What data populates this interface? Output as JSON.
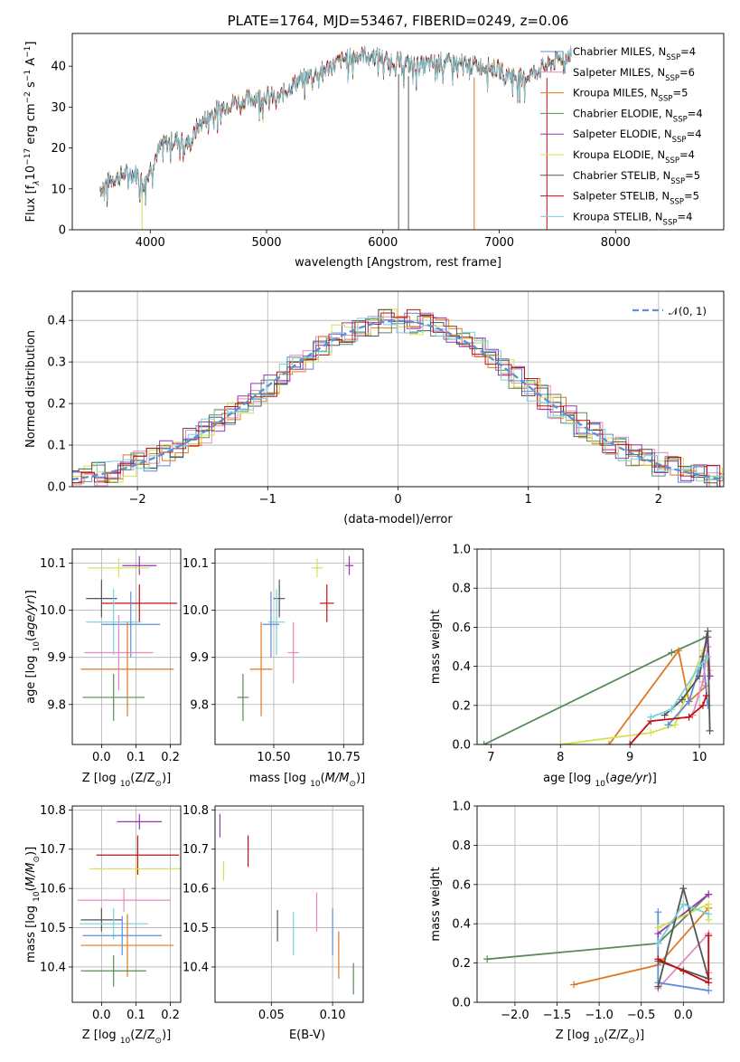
{
  "colors": {
    "chabrier_miles": "#5b8fd6",
    "salpeter_miles": "#e48ac1",
    "kroupa_miles": "#e07820",
    "chabrier_elodie": "#5a8a5a",
    "salpeter_elodie": "#9a36b0",
    "kroupa_elodie": "#d6e050",
    "chabrier_stelib": "#555555",
    "salpeter_stelib": "#c01010",
    "kroupa_stelib": "#78d0dc",
    "normal": "#5b8fd6",
    "grid": "#b0b0b0"
  },
  "chart_data": [
    {
      "id": "spectrum",
      "type": "line",
      "title": "PLATE=1764, MJD=53467, FIBERID=0249, z=0.06",
      "xlabel": "wavelength [Angstrom, rest frame]",
      "ylabel": "Flux [f$_\\lambda$10$^{-17}$ erg cm$^{-2}$ s$^{-1}$ A$^{-1}$]",
      "ylabel_parts": [
        "Flux [f",
        "λ",
        "10",
        "−17",
        " erg cm",
        "−2",
        " s",
        "−1",
        " A",
        "−1",
        "]"
      ],
      "xlim": [
        3330,
        8930
      ],
      "ylim": [
        0,
        48
      ],
      "xticks": [
        4000,
        5000,
        6000,
        7000,
        8000
      ],
      "yticks": [
        0,
        10,
        20,
        30,
        40
      ],
      "grid": false,
      "legend_position": "right",
      "series": [
        {
          "name": "Chabrier MILES, N",
          "sub": "SSP",
          "suffix": "=4",
          "color_key": "chabrier_miles"
        },
        {
          "name": "Salpeter MILES, N",
          "sub": "SSP",
          "suffix": "=6",
          "color_key": "salpeter_miles"
        },
        {
          "name": "Kroupa MILES, N",
          "sub": "SSP",
          "suffix": "=5",
          "color_key": "kroupa_miles"
        },
        {
          "name": "Chabrier ELODIE, N",
          "sub": "SSP",
          "suffix": "=4",
          "color_key": "chabrier_elodie"
        },
        {
          "name": "Salpeter ELODIE, N",
          "sub": "SSP",
          "suffix": "=4",
          "color_key": "salpeter_elodie"
        },
        {
          "name": "Kroupa ELODIE, N",
          "sub": "SSP",
          "suffix": "=4",
          "color_key": "kroupa_elodie"
        },
        {
          "name": "Chabrier STELIB, N",
          "sub": "SSP",
          "suffix": "=5",
          "color_key": "chabrier_stelib"
        },
        {
          "name": "Salpeter STELIB, N",
          "sub": "SSP",
          "suffix": "=5",
          "color_key": "salpeter_stelib"
        },
        {
          "name": "Kroupa STELIB, N",
          "sub": "SSP",
          "suffix": "=4",
          "color_key": "kroupa_stelib"
        }
      ],
      "continuum": [
        [
          3570,
          10
        ],
        [
          3650,
          12
        ],
        [
          3800,
          14
        ],
        [
          3900,
          13.5
        ],
        [
          3950,
          11
        ],
        [
          4000,
          15
        ],
        [
          4100,
          21
        ],
        [
          4250,
          22
        ],
        [
          4350,
          21
        ],
        [
          4400,
          25
        ],
        [
          4550,
          29
        ],
        [
          4700,
          31
        ],
        [
          4850,
          32
        ],
        [
          5000,
          33
        ],
        [
          5100,
          32
        ],
        [
          5200,
          35
        ],
        [
          5300,
          37
        ],
        [
          5400,
          38
        ],
        [
          5550,
          40
        ],
        [
          5700,
          42
        ],
        [
          5850,
          43
        ],
        [
          6000,
          42
        ],
        [
          6150,
          41
        ],
        [
          6300,
          40
        ],
        [
          6500,
          41
        ],
        [
          6700,
          40.5
        ],
        [
          6900,
          40
        ],
        [
          7050,
          38.5
        ],
        [
          7200,
          37
        ],
        [
          7400,
          40
        ],
        [
          7600,
          43
        ]
      ],
      "spikes": [
        {
          "x": 3930,
          "y": 0,
          "color_key": "kroupa_elodie"
        },
        {
          "x": 6135,
          "y": 0,
          "color_key": "chabrier_stelib"
        },
        {
          "x": 6220,
          "y": 0,
          "color_key": "chabrier_stelib"
        },
        {
          "x": 6785,
          "y": 0,
          "color_key": "kroupa_miles"
        },
        {
          "x": 7410,
          "y": 0,
          "color_key": "salpeter_stelib"
        }
      ]
    },
    {
      "id": "residuals",
      "type": "line",
      "xlabel": "(data-model)/error",
      "ylabel": "Normed distribution",
      "xlim": [
        -2.5,
        2.5
      ],
      "ylim": [
        0,
        0.47
      ],
      "xticks": [
        -2,
        -1,
        0,
        1,
        2
      ],
      "yticks": [
        0.0,
        0.1,
        0.2,
        0.3,
        0.4
      ],
      "grid": true,
      "legend_position": "top-right",
      "legend": "𝒩(0, 1)",
      "normal_curve": {
        "mean": 0,
        "sd": 1
      }
    },
    {
      "id": "age_z",
      "type": "scatter",
      "xlabel": "Z [log",
      "xlabel_sub": "10",
      "xlabel_rest": "(Z/Z",
      "xlabel_end": ")]",
      "ylabel": "age  [log",
      "ylabel_sub": "10",
      "ylabel_rest": "(age/yr)]",
      "xlim": [
        -0.085,
        0.23
      ],
      "ylim": [
        9.715,
        10.13
      ],
      "xticks": [
        0.0,
        0.1,
        0.2
      ],
      "yticks": [
        9.8,
        9.9,
        10.0,
        10.1
      ],
      "grid": true,
      "points": [
        {
          "x": 0.11,
          "y": 10.095,
          "xerr": 0.05,
          "yerr": 0.02,
          "color_key": "salpeter_elodie"
        },
        {
          "x": 0.05,
          "y": 10.09,
          "xerr": 0.09,
          "yerr": 0.02,
          "color_key": "kroupa_elodie"
        },
        {
          "x": 0.0,
          "y": 10.025,
          "xerr": 0.045,
          "yerr": 0.04,
          "color_key": "chabrier_stelib"
        },
        {
          "x": 0.11,
          "y": 10.015,
          "xerr": 0.11,
          "yerr": 0.04,
          "color_key": "salpeter_stelib"
        },
        {
          "x": 0.035,
          "y": 9.975,
          "xerr": 0.08,
          "yerr": 0.07,
          "color_key": "kroupa_stelib"
        },
        {
          "x": 0.085,
          "y": 9.97,
          "xerr": 0.085,
          "yerr": 0.07,
          "color_key": "chabrier_miles"
        },
        {
          "x": 0.05,
          "y": 9.91,
          "xerr": 0.1,
          "yerr": 0.08,
          "color_key": "salpeter_miles"
        },
        {
          "x": 0.075,
          "y": 9.875,
          "xerr": 0.135,
          "yerr": 0.1,
          "color_key": "kroupa_miles"
        },
        {
          "x": 0.035,
          "y": 9.815,
          "xerr": 0.09,
          "yerr": 0.05,
          "color_key": "chabrier_elodie"
        }
      ]
    },
    {
      "id": "age_mass",
      "type": "scatter",
      "xlabel": "mass [log",
      "xlabel_sub": "10",
      "xlabel_rest": "(M/M",
      "xlabel_end": ")]",
      "xlim": [
        10.29,
        10.82
      ],
      "ylim": [
        9.715,
        10.13
      ],
      "xticks": [
        10.5,
        10.75
      ],
      "xtick_labels": [
        "10.50",
        "10.75"
      ],
      "yticks": [
        9.8,
        9.9,
        10.0,
        10.1
      ],
      "grid": true,
      "points": [
        {
          "x": 10.77,
          "y": 10.095,
          "xerr": 0.015,
          "yerr": 0.02,
          "color_key": "salpeter_elodie"
        },
        {
          "x": 10.655,
          "y": 10.09,
          "xerr": 0.02,
          "yerr": 0.02,
          "color_key": "kroupa_elodie"
        },
        {
          "x": 10.52,
          "y": 10.025,
          "xerr": 0.02,
          "yerr": 0.04,
          "color_key": "chabrier_stelib"
        },
        {
          "x": 10.69,
          "y": 10.015,
          "xerr": 0.025,
          "yerr": 0.04,
          "color_key": "salpeter_stelib"
        },
        {
          "x": 10.51,
          "y": 9.975,
          "xerr": 0.03,
          "yerr": 0.07,
          "color_key": "kroupa_stelib"
        },
        {
          "x": 10.49,
          "y": 9.97,
          "xerr": 0.03,
          "yerr": 0.07,
          "color_key": "chabrier_miles"
        },
        {
          "x": 10.57,
          "y": 9.91,
          "xerr": 0.02,
          "yerr": 0.065,
          "color_key": "salpeter_miles"
        },
        {
          "x": 10.455,
          "y": 9.875,
          "xerr": 0.04,
          "yerr": 0.1,
          "color_key": "kroupa_miles"
        },
        {
          "x": 10.39,
          "y": 9.815,
          "xerr": 0.02,
          "yerr": 0.05,
          "color_key": "chabrier_elodie"
        }
      ]
    },
    {
      "id": "weights_age",
      "type": "line",
      "xlabel": "age  [log",
      "xlabel_sub": "10",
      "xlabel_rest": "(age/yr)]",
      "ylabel": "mass weight",
      "xlim": [
        6.8,
        10.35
      ],
      "ylim": [
        0,
        1
      ],
      "xticks": [
        7,
        8,
        9,
        10
      ],
      "yticks": [
        0.0,
        0.2,
        0.4,
        0.6,
        0.8,
        1.0
      ],
      "grid": true,
      "series": [
        {
          "color_key": "chabrier_elodie",
          "points": [
            [
              6.9,
              0.0
            ],
            [
              9.6,
              0.47
            ],
            [
              10.1,
              0.55
            ]
          ]
        },
        {
          "color_key": "kroupa_miles",
          "points": [
            [
              8.7,
              0.0
            ],
            [
              9.7,
              0.48
            ],
            [
              9.85,
              0.22
            ],
            [
              10.1,
              0.3
            ]
          ]
        },
        {
          "color_key": "kroupa_elodie",
          "points": [
            [
              8.0,
              0.0
            ],
            [
              9.3,
              0.06
            ],
            [
              9.65,
              0.1
            ],
            [
              10.05,
              0.48
            ],
            [
              10.15,
              0.38
            ]
          ]
        },
        {
          "color_key": "chabrier_miles",
          "points": [
            [
              9.55,
              0.1
            ],
            [
              9.85,
              0.22
            ],
            [
              10.05,
              0.45
            ],
            [
              10.12,
              0.2
            ]
          ]
        },
        {
          "color_key": "salpeter_miles",
          "points": [
            [
              9.9,
              0.15
            ],
            [
              10.05,
              0.32
            ],
            [
              10.12,
              0.5
            ]
          ]
        },
        {
          "color_key": "salpeter_elodie",
          "points": [
            [
              10.05,
              0.45
            ],
            [
              10.12,
              0.55
            ],
            [
              10.15,
              0.35
            ]
          ]
        },
        {
          "color_key": "chabrier_stelib",
          "points": [
            [
              9.5,
              0.15
            ],
            [
              9.75,
              0.23
            ],
            [
              10.0,
              0.35
            ],
            [
              10.12,
              0.58
            ],
            [
              10.15,
              0.07
            ]
          ]
        },
        {
          "color_key": "salpeter_stelib",
          "points": [
            [
              9.0,
              0.0
            ],
            [
              9.3,
              0.12
            ],
            [
              9.85,
              0.14
            ],
            [
              10.05,
              0.2
            ],
            [
              10.1,
              0.25
            ]
          ]
        },
        {
          "color_key": "kroupa_stelib",
          "points": [
            [
              9.3,
              0.14
            ],
            [
              9.6,
              0.18
            ],
            [
              10.0,
              0.4
            ],
            [
              10.12,
              0.45
            ]
          ]
        }
      ]
    },
    {
      "id": "mass_z",
      "type": "scatter",
      "xlabel": "Z [log",
      "xlabel_sub": "10",
      "xlabel_rest": "(Z/Z",
      "xlabel_end": ")]",
      "ylabel": "mass [log",
      "ylabel_sub": "10",
      "ylabel_rest": "(M/M",
      "ylabel_end": ")]",
      "xlim": [
        -0.085,
        0.23
      ],
      "ylim": [
        10.31,
        10.81
      ],
      "xticks": [
        0.0,
        0.1,
        0.2
      ],
      "yticks": [
        10.4,
        10.5,
        10.6,
        10.7,
        10.8
      ],
      "grid": true,
      "points": [
        {
          "x": 0.11,
          "y": 10.77,
          "xerr": 0.065,
          "yerr": 0.02,
          "color_key": "salpeter_elodie"
        },
        {
          "x": 0.105,
          "y": 10.685,
          "xerr": 0.12,
          "yerr": 0.05,
          "color_key": "salpeter_stelib"
        },
        {
          "x": 0.1,
          "y": 10.65,
          "xerr": 0.135,
          "yerr": 0.025,
          "color_key": "kroupa_elodie"
        },
        {
          "x": 0.065,
          "y": 10.57,
          "xerr": 0.135,
          "yerr": 0.03,
          "color_key": "salpeter_miles"
        },
        {
          "x": 0.0,
          "y": 10.52,
          "xerr": 0.06,
          "yerr": 0.03,
          "color_key": "chabrier_stelib"
        },
        {
          "x": 0.035,
          "y": 10.51,
          "xerr": 0.1,
          "yerr": 0.04,
          "color_key": "kroupa_stelib"
        },
        {
          "x": 0.06,
          "y": 10.48,
          "xerr": 0.115,
          "yerr": 0.05,
          "color_key": "chabrier_miles"
        },
        {
          "x": 0.075,
          "y": 10.455,
          "xerr": 0.135,
          "yerr": 0.08,
          "color_key": "kroupa_miles"
        },
        {
          "x": 0.035,
          "y": 10.39,
          "xerr": 0.095,
          "yerr": 0.04,
          "color_key": "chabrier_elodie"
        }
      ]
    },
    {
      "id": "mass_ebv",
      "type": "scatter",
      "xlabel": "E(B-V)",
      "xlim": [
        0.004,
        0.125
      ],
      "ylim": [
        10.31,
        10.81
      ],
      "xticks": [
        0.05,
        0.1
      ],
      "xtick_labels": [
        "0.05",
        "0.10"
      ],
      "yticks": [
        10.4,
        10.5,
        10.6,
        10.7,
        10.8
      ],
      "grid": true,
      "points": [
        {
          "x": 0.008,
          "y": 10.76,
          "xerr": 0,
          "yerr": 0.03,
          "color_key": "salpeter_elodie"
        },
        {
          "x": 0.031,
          "y": 10.695,
          "xerr": 0,
          "yerr": 0.04,
          "color_key": "salpeter_stelib"
        },
        {
          "x": 0.011,
          "y": 10.645,
          "xerr": 0,
          "yerr": 0.025,
          "color_key": "kroupa_elodie"
        },
        {
          "x": 0.087,
          "y": 10.54,
          "xerr": 0,
          "yerr": 0.05,
          "color_key": "salpeter_miles"
        },
        {
          "x": 0.055,
          "y": 10.505,
          "xerr": 0,
          "yerr": 0.04,
          "color_key": "chabrier_stelib"
        },
        {
          "x": 0.068,
          "y": 10.485,
          "xerr": 0,
          "yerr": 0.055,
          "color_key": "kroupa_stelib"
        },
        {
          "x": 0.1,
          "y": 10.49,
          "xerr": 0,
          "yerr": 0.06,
          "color_key": "chabrier_miles"
        },
        {
          "x": 0.105,
          "y": 10.43,
          "xerr": 0,
          "yerr": 0.06,
          "color_key": "kroupa_miles"
        },
        {
          "x": 0.117,
          "y": 10.37,
          "xerr": 0,
          "yerr": 0.04,
          "color_key": "chabrier_elodie"
        }
      ]
    },
    {
      "id": "weights_z",
      "type": "line",
      "xlabel": "Z [log",
      "xlabel_sub": "10",
      "xlabel_rest": "(Z/Z",
      "xlabel_end": ")]",
      "ylabel": "mass weight",
      "xlim": [
        -2.45,
        0.48
      ],
      "ylim": [
        0,
        1
      ],
      "xticks": [
        -2.0,
        -1.5,
        -1.0,
        -0.5,
        0.0
      ],
      "yticks": [
        0.0,
        0.2,
        0.4,
        0.6,
        0.8,
        1.0
      ],
      "grid": true,
      "series": [
        {
          "color_key": "chabrier_elodie",
          "points": [
            [
              -2.33,
              0.22
            ],
            [
              -0.3,
              0.3
            ],
            [
              0.3,
              0.55
            ]
          ]
        },
        {
          "color_key": "kroupa_miles",
          "points": [
            [
              -1.3,
              0.09
            ],
            [
              -0.3,
              0.19
            ],
            [
              0.3,
              0.48
            ]
          ]
        },
        {
          "color_key": "salpeter_miles",
          "points": [
            [
              -0.3,
              0.07
            ],
            [
              0.3,
              0.35
            ],
            [
              0.3,
              0.15
            ]
          ]
        },
        {
          "color_key": "chabrier_miles",
          "points": [
            [
              -0.3,
              0.46
            ],
            [
              -0.3,
              0.1
            ],
            [
              0.3,
              0.06
            ]
          ]
        },
        {
          "color_key": "salpeter_elodie",
          "points": [
            [
              -0.3,
              0.35
            ],
            [
              0.3,
              0.55
            ]
          ]
        },
        {
          "color_key": "kroupa_elodie",
          "points": [
            [
              -0.3,
              0.38
            ],
            [
              0.3,
              0.5
            ],
            [
              0.3,
              0.42
            ]
          ]
        },
        {
          "color_key": "chabrier_stelib",
          "points": [
            [
              -0.3,
              0.08
            ],
            [
              0.0,
              0.58
            ],
            [
              0.3,
              0.12
            ],
            [
              -0.3,
              0.21
            ]
          ]
        },
        {
          "color_key": "salpeter_stelib",
          "points": [
            [
              -0.3,
              0.22
            ],
            [
              0.0,
              0.16
            ],
            [
              0.3,
              0.1
            ],
            [
              0.3,
              0.34
            ]
          ]
        },
        {
          "color_key": "kroupa_stelib",
          "points": [
            [
              -0.3,
              0.3
            ],
            [
              0.0,
              0.5
            ],
            [
              0.3,
              0.45
            ]
          ]
        }
      ]
    }
  ]
}
